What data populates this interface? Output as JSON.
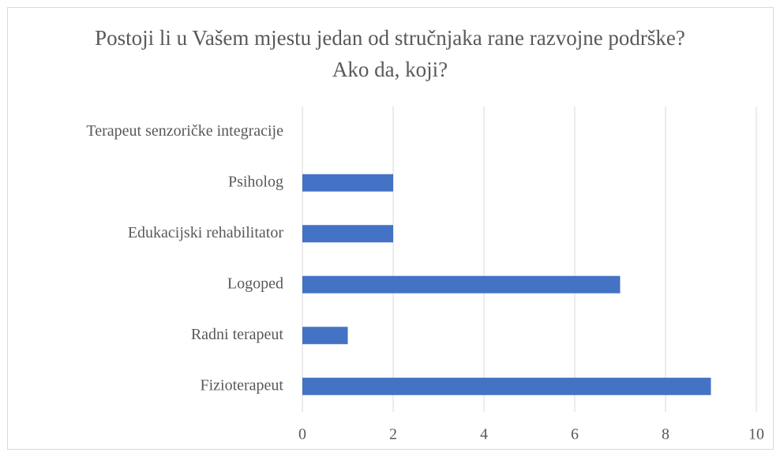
{
  "chart_data": {
    "type": "barh",
    "title": "Postoji li u Vašem mjestu jedan od stručnjaka rane razvojne podrške? Ako da, koji?",
    "categories": [
      "Fizioterapeut",
      "Radni terapeut",
      "Logoped",
      "Edukacijski rehabilitator",
      "Psiholog",
      "Terapeut senzoričke integracije"
    ],
    "values": [
      9,
      1,
      7,
      2,
      2,
      0
    ],
    "color": "#4472c4",
    "xlim": [
      0,
      10
    ],
    "xticks": [
      0,
      2,
      4,
      6,
      8,
      10
    ],
    "grid": true
  }
}
